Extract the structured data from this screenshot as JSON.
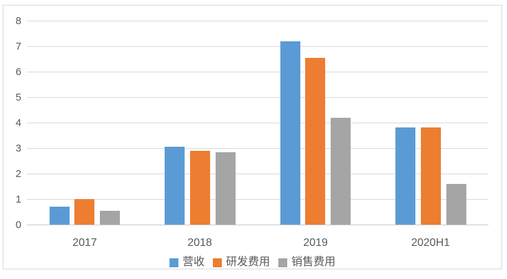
{
  "chart_data": {
    "type": "bar",
    "title": "",
    "xlabel": "",
    "ylabel": "",
    "categories": [
      "2017",
      "2018",
      "2019",
      "2020H1"
    ],
    "series": [
      {
        "name": "营收",
        "color": "#5B9BD5",
        "values": [
          0.7,
          3.05,
          7.2,
          3.8
        ]
      },
      {
        "name": "研发费用",
        "color": "#ED7D31",
        "values": [
          1.0,
          2.9,
          6.55,
          3.8
        ]
      },
      {
        "name": "销售费用",
        "color": "#A5A5A5",
        "values": [
          0.55,
          2.85,
          4.2,
          1.6
        ]
      }
    ],
    "ylim": [
      0,
      8
    ],
    "yticks": [
      0,
      1,
      2,
      3,
      4,
      5,
      6,
      7,
      8
    ],
    "grid": true,
    "legend_position": "bottom"
  },
  "colors": {
    "background": "#FFFFFF",
    "frame_border": "#D9D9D9",
    "gridline": "#D9D9D9",
    "axis_line": "#C9C9C9",
    "tick_label": "#595959"
  }
}
